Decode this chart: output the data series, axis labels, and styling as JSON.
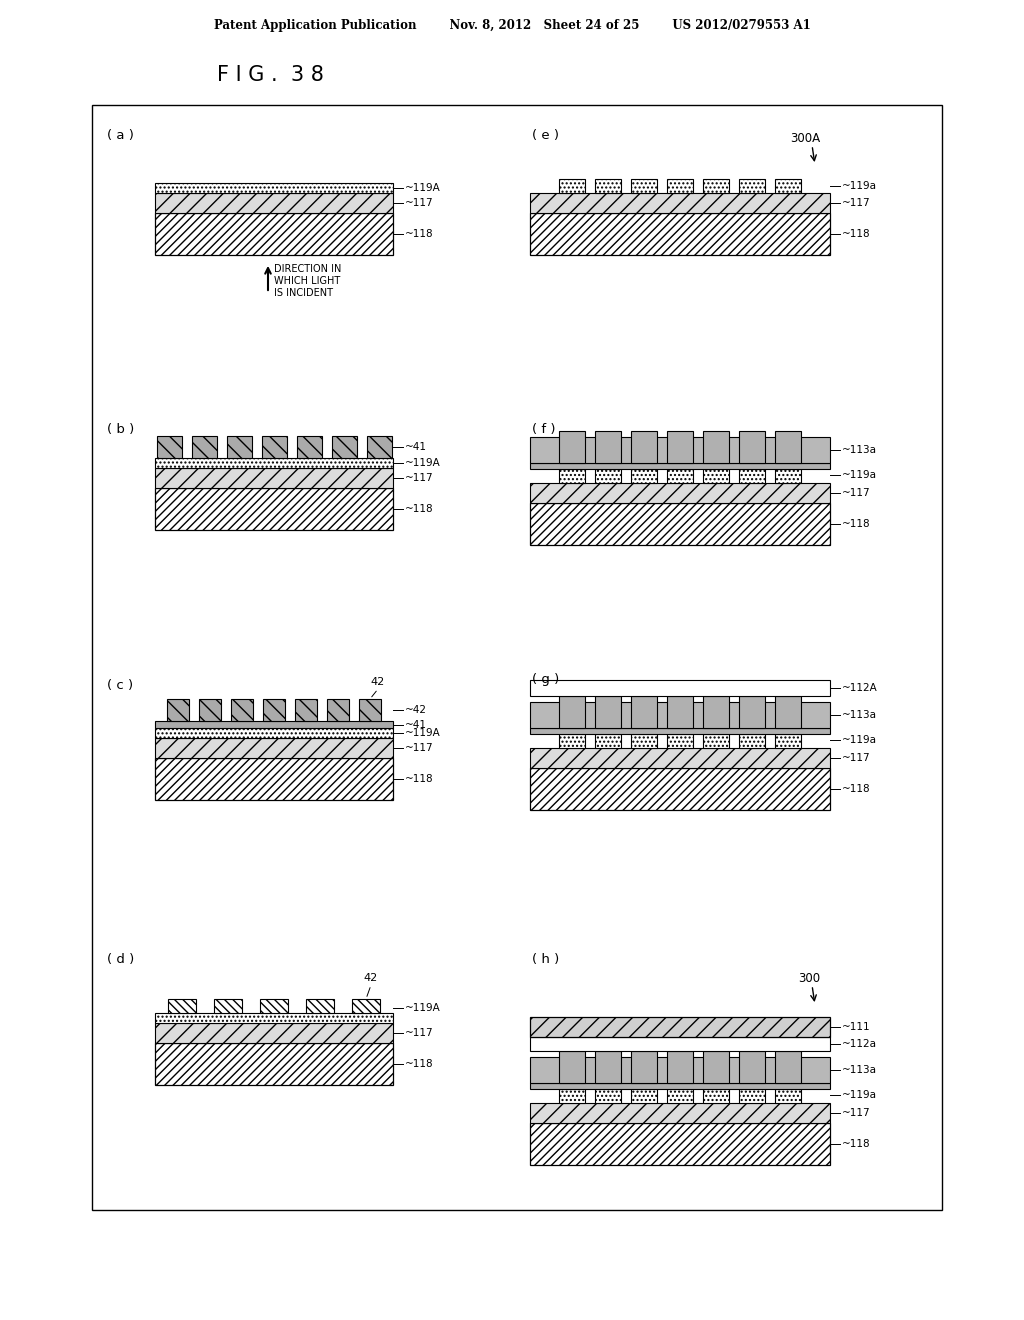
{
  "header": "Patent Application Publication        Nov. 8, 2012   Sheet 24 of 25        US 2012/0279553 A1",
  "title": "F I G .  3 8",
  "bg_color": "#ffffff",
  "panel_labels": [
    "( a )",
    "( b )",
    "( c )",
    "( d )",
    "( e )",
    "( f )",
    "( g )",
    "( h )"
  ],
  "ref_300A": "300A",
  "ref_300": "300",
  "arrow_text": "DIRECTION IN\nWHICH LIGHT\nIS INCIDENT",
  "layer_colors": {
    "118_fc": "#ffffff",
    "117_fc": "#e0e0e0",
    "119A_fc": "#ffffff",
    "41_fc": "#b0b0b0",
    "42_fc": "#ffffff",
    "113a_fc": "#b8b8b8",
    "112A_fc": "#ffffff",
    "111_fc": "#d8d8d8"
  }
}
